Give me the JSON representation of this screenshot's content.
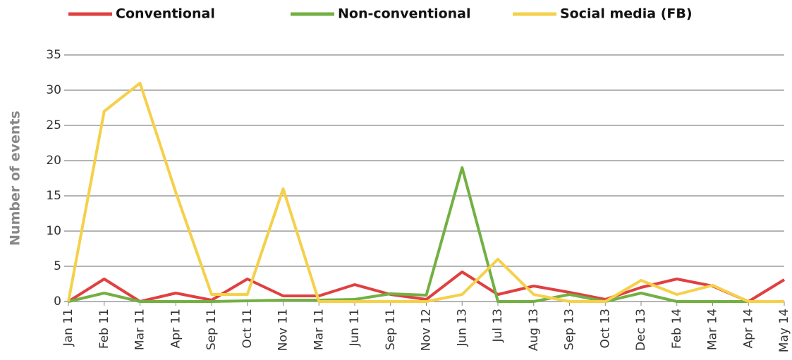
{
  "chart_data": {
    "type": "line",
    "ylabel": "Number of events",
    "categories": [
      "Jan 11",
      "Feb 11",
      "Mar 11",
      "Apr 11",
      "Sep 11",
      "Oct 11",
      "Nov 11",
      "Mar 11",
      "Jun 11",
      "Sep 11",
      "Nov 12",
      "Jun 13",
      "Jul 13",
      "Aug 13",
      "Sep 13",
      "Oct 13",
      "Dec 13",
      "Feb 14",
      "Mar 14",
      "Apr 14",
      "May 14"
    ],
    "series": [
      {
        "name": "Conventional",
        "color": "#e04040",
        "values": [
          0,
          3.2,
          0,
          1.2,
          0.2,
          3.2,
          0.8,
          0.8,
          2.4,
          1,
          0.3,
          4.2,
          1,
          2.2,
          1.3,
          0.3,
          2,
          3.2,
          2.2,
          0,
          3.1
        ]
      },
      {
        "name": "Non-conventional",
        "color": "#72b043",
        "values": [
          0,
          1.2,
          0,
          0,
          0,
          0.1,
          0.2,
          0.2,
          0.3,
          1.1,
          0.9,
          19,
          0,
          0,
          1,
          0,
          1.2,
          0,
          0,
          0,
          0
        ]
      },
      {
        "name": "Social media (FB)",
        "color": "#f5d04a",
        "values": [
          0,
          27,
          31,
          15.5,
          1,
          1,
          16,
          0,
          0,
          0,
          0,
          1,
          6,
          1,
          0,
          0,
          3,
          1,
          2.3,
          0,
          0
        ]
      }
    ],
    "ylim": [
      0,
      35
    ],
    "yticks": [
      0,
      5,
      10,
      15,
      20,
      25,
      30,
      35
    ],
    "grid": true
  }
}
